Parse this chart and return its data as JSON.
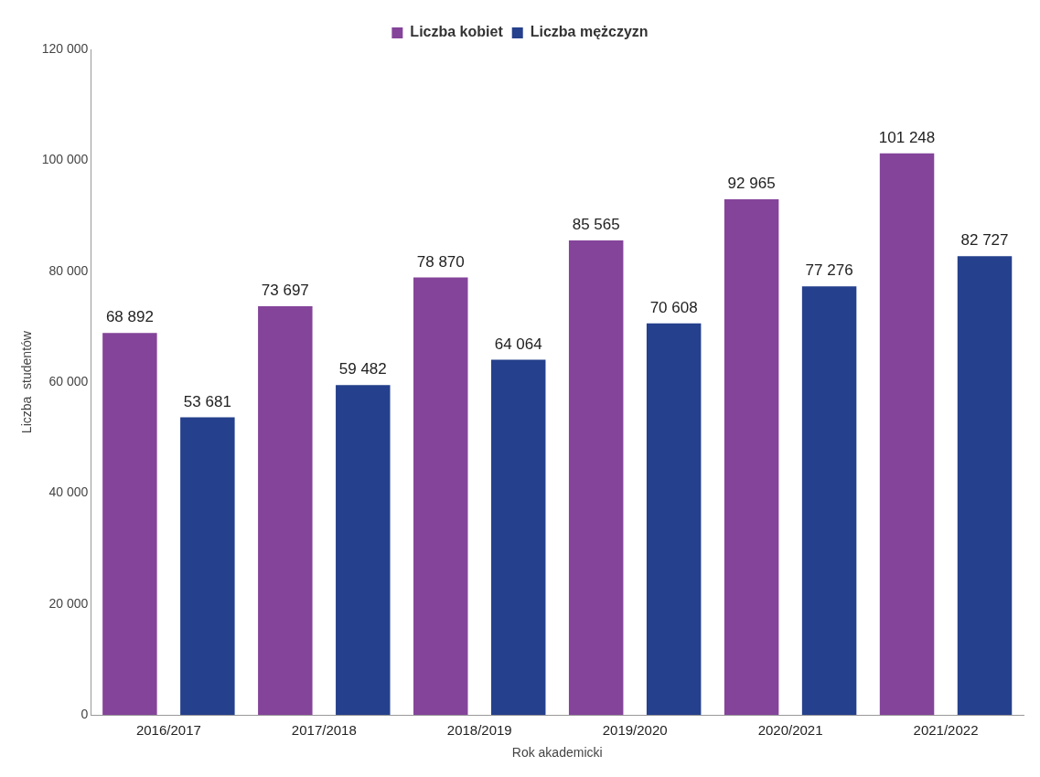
{
  "chart_data": {
    "type": "bar",
    "xlabel": "Rok akademicki",
    "ylabel": "Liczba  studentów",
    "categories": [
      "2016/2017",
      "2017/2018",
      "2018/2019",
      "2019/2020",
      "2020/2021",
      "2021/2022"
    ],
    "series": [
      {
        "name": "Liczba kobiet",
        "color": "#84449a",
        "values": [
          68892,
          73697,
          78870,
          85565,
          92965,
          101248
        ],
        "value_labels": [
          "68 892",
          "73 697",
          "78 870",
          "85 565",
          "92 965",
          "101 248"
        ]
      },
      {
        "name": "Liczba mężczyzn",
        "color": "#25408c",
        "values": [
          53681,
          59482,
          64064,
          70608,
          77276,
          82727
        ],
        "value_labels": [
          "53 681",
          "59 482",
          "64 064",
          "70 608",
          "77 276",
          "82 727"
        ]
      }
    ],
    "ylim": [
      0,
      120000
    ],
    "yticks": [
      {
        "value": 0,
        "label": "0"
      },
      {
        "value": 20000,
        "label": "20 000"
      },
      {
        "value": 40000,
        "label": "40 000"
      },
      {
        "value": 60000,
        "label": "60 000"
      },
      {
        "value": 80000,
        "label": "80 000"
      },
      {
        "value": 100000,
        "label": "100 000"
      },
      {
        "value": 120000,
        "label": "120 000"
      }
    ],
    "grid": false,
    "legend": "top"
  }
}
